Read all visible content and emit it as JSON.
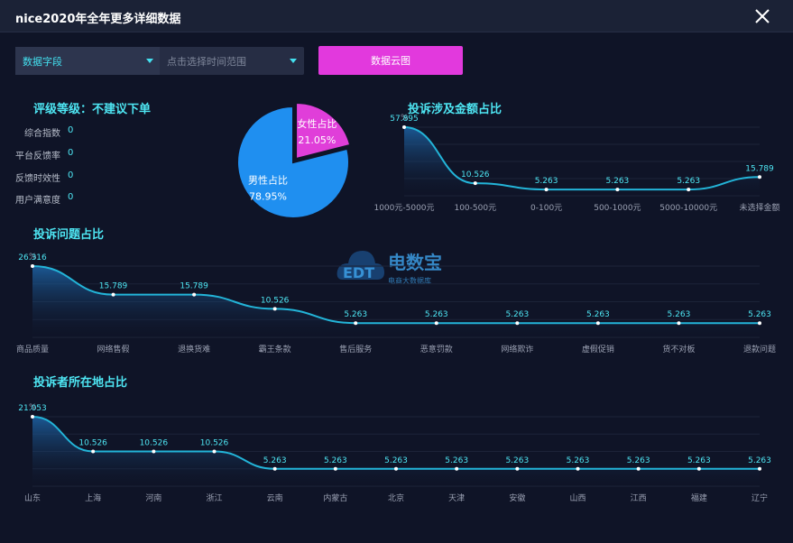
{
  "window": {
    "title": "nice2020年全年更多详细数据"
  },
  "filters": {
    "field_label": "数据字段",
    "time_placeholder": "点击选择时间范围",
    "cloud_button": "数据云图"
  },
  "rating": {
    "title": "评级等级：不建议下单",
    "rows": [
      {
        "label": "综合指数",
        "value": "0"
      },
      {
        "label": "平台反馈率",
        "value": "0"
      },
      {
        "label": "反馈时效性",
        "value": "0"
      },
      {
        "label": "用户满意度",
        "value": "0"
      }
    ]
  },
  "watermark": {
    "text": "电数宝",
    "subtext": "电商大数据库",
    "logo": "EDT"
  },
  "colors": {
    "accent": "#4ee6f3",
    "line": "#23b4d8",
    "female": "#e03ed9",
    "male": "#1f8ff0",
    "button": "#e239dd"
  },
  "chart_data": [
    {
      "id": "gender",
      "type": "pie",
      "title": "",
      "slices": [
        {
          "name": "女性占比",
          "value": 21.05,
          "label": "21.05%"
        },
        {
          "name": "男性占比",
          "value": 78.95,
          "label": "78.95%"
        }
      ]
    },
    {
      "id": "amount",
      "type": "area",
      "title": "投诉涉及金额占比",
      "ylabel": "%",
      "ylim": [
        0,
        57.895
      ],
      "categories": [
        "1000元-5000元",
        "100-500元",
        "0-100元",
        "500-1000元",
        "5000-10000元",
        "未选择金额"
      ],
      "values": [
        57.895,
        10.526,
        5.263,
        5.263,
        5.263,
        15.789
      ],
      "labels": [
        "57.895",
        "10.526",
        "5.263",
        "5.263",
        "5.263",
        "15.789"
      ]
    },
    {
      "id": "issue",
      "type": "area",
      "title": "投诉问题占比",
      "ylabel": "%",
      "ylim": [
        0,
        26.316
      ],
      "categories": [
        "商品质量",
        "网络售假",
        "退换货难",
        "霸王条款",
        "售后服务",
        "恶意罚款",
        "网络欺诈",
        "虚假促销",
        "货不对板",
        "退款问题"
      ],
      "values": [
        26.316,
        15.789,
        15.789,
        10.526,
        5.263,
        5.263,
        5.263,
        5.263,
        5.263,
        5.263
      ],
      "labels": [
        "26.316",
        "15.789",
        "15.789",
        "10.526",
        "5.263",
        "5.263",
        "5.263",
        "5.263",
        "5.263",
        "5.263"
      ]
    },
    {
      "id": "region",
      "type": "area",
      "title": "投诉者所在地占比",
      "ylabel": "%",
      "ylim": [
        0,
        21.053
      ],
      "categories": [
        "山东",
        "上海",
        "河南",
        "浙江",
        "云南",
        "内蒙古",
        "北京",
        "天津",
        "安徽",
        "山西",
        "江西",
        "福建",
        "辽宁"
      ],
      "values": [
        21.053,
        10.526,
        10.526,
        10.526,
        5.263,
        5.263,
        5.263,
        5.263,
        5.263,
        5.263,
        5.263,
        5.263,
        5.263
      ],
      "labels": [
        "21.053",
        "10.526",
        "10.526",
        "10.526",
        "5.263",
        "5.263",
        "5.263",
        "5.263",
        "5.263",
        "5.263",
        "5.263",
        "5.263",
        "5.263"
      ]
    }
  ]
}
